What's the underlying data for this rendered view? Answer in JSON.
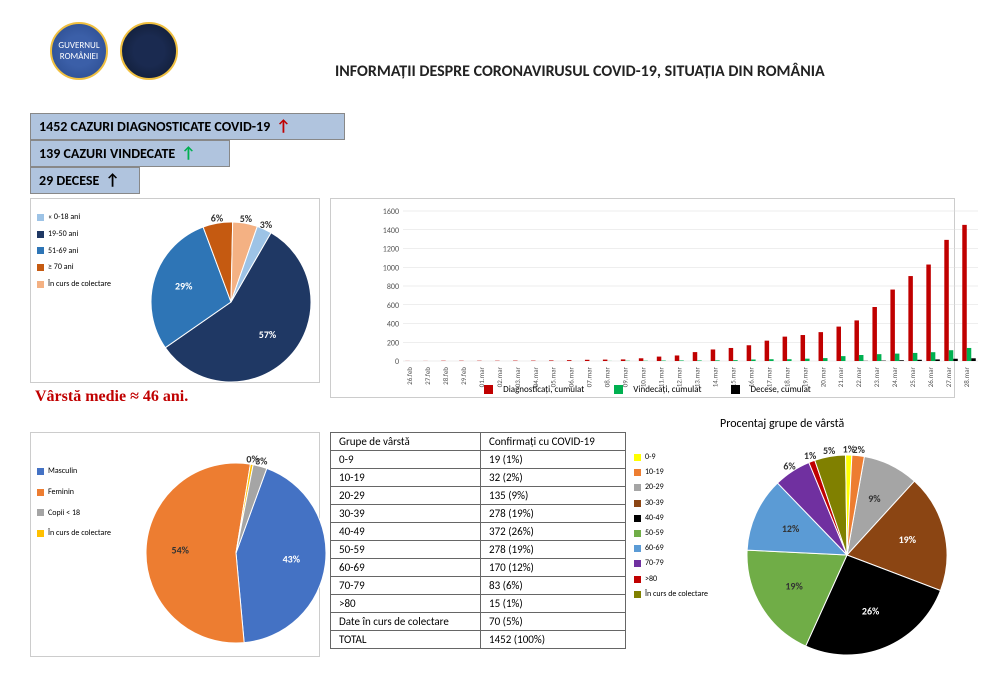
{
  "title": "INFORMAȚII DESPRE CORONAVIRUSUL COVID-19, SITUAȚIA DIN ROMÂNIA",
  "stats": {
    "diagnosed": "1452 CAZURI DIAGNOSTICATE COVID-19",
    "recovered": "139 CAZURI VINDECATE",
    "deaths": "29 DECESE"
  },
  "avg_age": "Vârstă medie ≈ 46 ani.",
  "pie1": {
    "legend": [
      "« 0-18 ani",
      "19-50 ani",
      "51-69 ani",
      "≥ 70 ani",
      "În curs de colectare"
    ],
    "slices": [
      {
        "label": "57%",
        "value": 57,
        "color": "#1f3864"
      },
      {
        "label": "29%",
        "value": 29,
        "color": "#2e75b6"
      },
      {
        "label": "6%",
        "value": 6,
        "color": "#c55a11"
      },
      {
        "label": "5%",
        "value": 5,
        "color": "#f4b183"
      },
      {
        "label": "3%",
        "value": 3,
        "color": "#9dc3e6"
      }
    ],
    "legend_colors": [
      "#9dc3e6",
      "#1f3864",
      "#2e75b6",
      "#c55a11",
      "#f4b183"
    ]
  },
  "bar": {
    "ymax": 1600,
    "ytick": 200,
    "categories": [
      "26.feb",
      "27.feb",
      "28.feb",
      "29.feb",
      "01.mar",
      "02.mar",
      "03.mar",
      "04.mar",
      "05.mar",
      "06.mar",
      "07.mar",
      "08.mar",
      "09.mar",
      "10.mar",
      "11.mar",
      "12.mar",
      "13.mar",
      "14.mar",
      "15.mar",
      "16.mar",
      "17.mar",
      "18.mar",
      "19.mar",
      "20.mar",
      "21.mar",
      "22.mar",
      "23.mar",
      "24.mar",
      "25.mar",
      "26.mar",
      "27.mar",
      "28.mar"
    ],
    "series": [
      {
        "name": "Diagnosticați, cumulat",
        "color": "#c00000",
        "values": [
          1,
          1,
          3,
          3,
          3,
          3,
          4,
          4,
          6,
          9,
          13,
          15,
          17,
          29,
          47,
          59,
          95,
          123,
          139,
          168,
          217,
          260,
          277,
          308,
          367,
          433,
          576,
          762,
          906,
          1029,
          1292,
          1452
        ]
      },
      {
        "name": "Vindecați, cumulat",
        "color": "#00b050",
        "values": [
          0,
          0,
          0,
          0,
          0,
          0,
          0,
          0,
          0,
          0,
          0,
          1,
          3,
          3,
          5,
          6,
          6,
          7,
          9,
          16,
          19,
          19,
          25,
          31,
          52,
          64,
          73,
          79,
          86,
          94,
          115,
          139
        ]
      },
      {
        "name": "Decese, cumulat",
        "color": "#000000",
        "values": [
          0,
          0,
          0,
          0,
          0,
          0,
          0,
          0,
          0,
          0,
          0,
          0,
          0,
          0,
          0,
          0,
          0,
          0,
          0,
          0,
          0,
          0,
          0,
          0,
          0,
          2,
          4,
          8,
          13,
          17,
          24,
          29
        ]
      }
    ]
  },
  "pie2": {
    "legend": [
      "Masculin",
      "Feminin",
      "Copii < 18",
      "În curs de colectare"
    ],
    "legend_colors": [
      "#4472c4",
      "#ed7d31",
      "#a5a5a5",
      "#ffc000"
    ],
    "slices": [
      {
        "label": "43%",
        "value": 43,
        "color": "#4472c4"
      },
      {
        "label": "54%",
        "value": 54,
        "color": "#ed7d31"
      },
      {
        "label": "0%",
        "value": 0.5,
        "color": "#ffc000"
      },
      {
        "label": "3%",
        "value": 2.5,
        "color": "#a5a5a5"
      }
    ]
  },
  "table": {
    "header": [
      "Grupe de vârstă",
      "Confirmați cu COVID-19"
    ],
    "rows": [
      [
        "0-9",
        "19 (1%)"
      ],
      [
        "10-19",
        "32 (2%)"
      ],
      [
        "20-29",
        "135 (9%)"
      ],
      [
        "30-39",
        "278 (19%)"
      ],
      [
        "40-49",
        "372 (26%)"
      ],
      [
        "50-59",
        "278 (19%)"
      ],
      [
        "60-69",
        "170 (12%)"
      ],
      [
        "70-79",
        "83 (6%)"
      ],
      [
        ">80",
        "15 (1%)"
      ],
      [
        "Date în curs de colectare",
        "70 (5%)"
      ],
      [
        "TOTAL",
        "1452 (100%)"
      ]
    ]
  },
  "pie3": {
    "title": "Procentaj grupe de vârstă",
    "legend": [
      "0-9",
      "10-19",
      "20-29",
      "30-39",
      "40-49",
      "50-59",
      "60-69",
      "70-79",
      ">80",
      "În curs de colectare"
    ],
    "legend_colors": [
      "#ffff00",
      "#ed7d31",
      "#a5a5a5",
      "#8b4513",
      "#000000",
      "#70ad47",
      "#5b9bd5",
      "#7030a0",
      "#c00000",
      "#808000"
    ],
    "slices": [
      {
        "label": "9%",
        "value": 9,
        "color": "#a5a5a5"
      },
      {
        "label": "19%",
        "value": 19,
        "color": "#8b4513"
      },
      {
        "label": "26%",
        "value": 26,
        "color": "#000000"
      },
      {
        "label": "19%",
        "value": 19,
        "color": "#70ad47"
      },
      {
        "label": "12%",
        "value": 12,
        "color": "#5b9bd5"
      },
      {
        "label": "6%",
        "value": 6,
        "color": "#7030a0"
      },
      {
        "label": "1%",
        "value": 1,
        "color": "#c00000"
      },
      {
        "label": "5%",
        "value": 5,
        "color": "#808000"
      },
      {
        "label": "1%",
        "value": 1,
        "color": "#ffff00"
      },
      {
        "label": "2%",
        "value": 2,
        "color": "#ed7d31"
      }
    ]
  }
}
